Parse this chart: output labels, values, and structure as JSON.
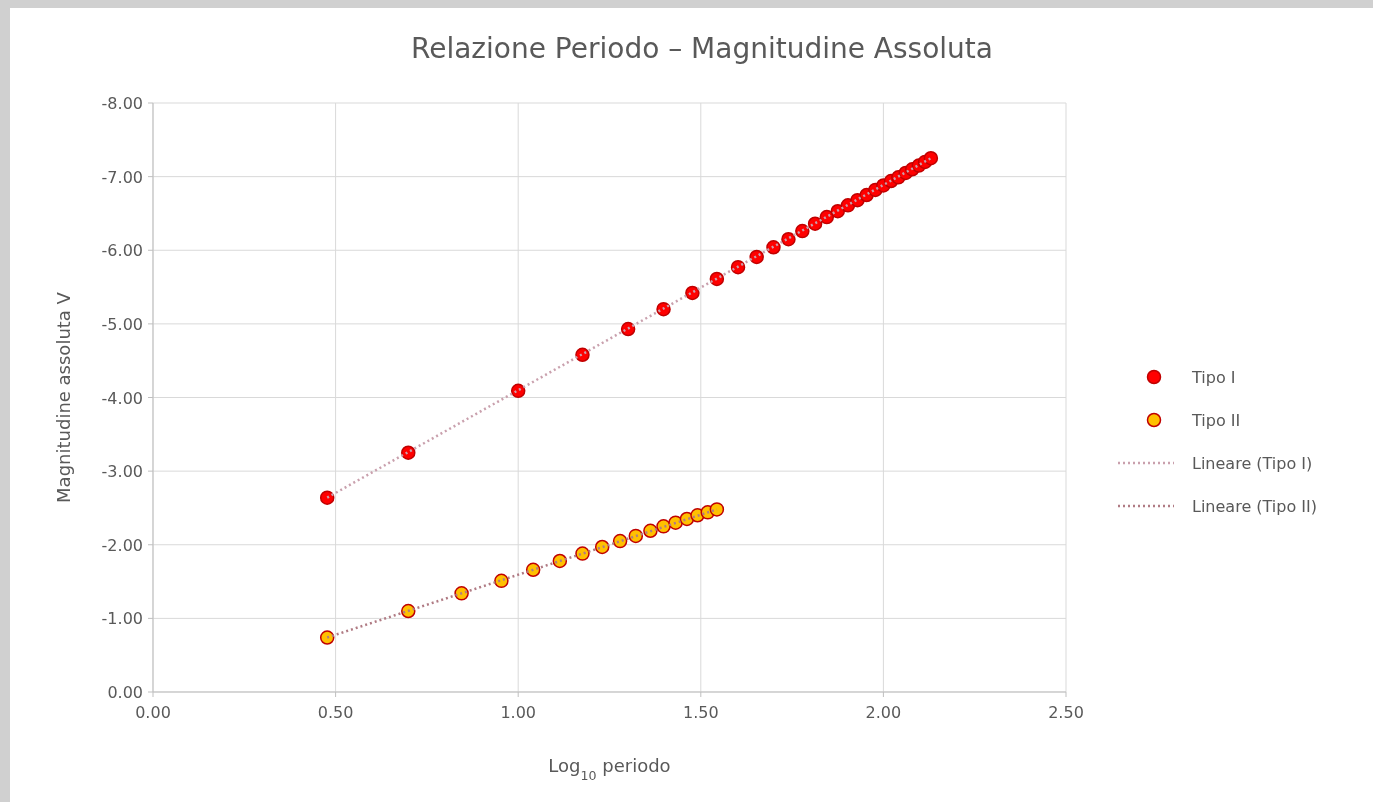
{
  "chart_data": {
    "type": "scatter",
    "title": "Relazione Periodo – Magnitudine Assoluta",
    "xlabel": "Log$_{10}$ periodo",
    "ylabel": "Magnitudine assoluta V",
    "xlim": [
      0,
      2.5
    ],
    "xticks": [
      {
        "value": 0,
        "label": "0.00"
      },
      {
        "value": 0.5,
        "label": "0.50"
      },
      {
        "value": 1,
        "label": "1.00"
      },
      {
        "value": 1.5,
        "label": "1.50"
      },
      {
        "value": 2,
        "label": "2.00"
      },
      {
        "value": 2.5,
        "label": "2.50"
      }
    ],
    "ylim": [
      0,
      -8
    ],
    "yticks": [
      {
        "value": 0,
        "label": "0.00"
      },
      {
        "value": -1,
        "label": "-1.00"
      },
      {
        "value": -2,
        "label": "-2.00"
      },
      {
        "value": -3,
        "label": "-3.00"
      },
      {
        "value": -4,
        "label": "-4.00"
      },
      {
        "value": -5,
        "label": "-5.00"
      },
      {
        "value": -6,
        "label": "-6.00"
      },
      {
        "value": -7,
        "label": "-7.00"
      },
      {
        "value": -8,
        "label": "-8.00"
      }
    ],
    "grid": true,
    "legend": "right",
    "marker": "circle",
    "series": [
      {
        "name": "Tipo I",
        "color": "#ff0000",
        "x": [
          0.477,
          0.699,
          1.0,
          1.176,
          1.301,
          1.398,
          1.477,
          1.544,
          1.602,
          1.653,
          1.699,
          1.74,
          1.778,
          1.813,
          1.845,
          1.875,
          1.903,
          1.929,
          1.954,
          1.978,
          2.0,
          2.021,
          2.041,
          2.061,
          2.079,
          2.097,
          2.114,
          2.13
        ],
        "values": [
          -2.64,
          -3.25,
          -4.09,
          -4.58,
          -4.93,
          -5.2,
          -5.42,
          -5.61,
          -5.77,
          -5.91,
          -6.04,
          -6.15,
          -6.26,
          -6.36,
          -6.45,
          -6.53,
          -6.61,
          -6.68,
          -6.75,
          -6.82,
          -6.88,
          -6.94,
          -6.99,
          -7.05,
          -7.1,
          -7.15,
          -7.2,
          -7.25
        ]
      },
      {
        "name": "Tipo II",
        "color": "#ffc000",
        "x": [
          0.477,
          0.699,
          0.845,
          0.954,
          1.041,
          1.114,
          1.176,
          1.23,
          1.279,
          1.322,
          1.362,
          1.398,
          1.431,
          1.462,
          1.491,
          1.519,
          1.544
        ],
        "values": [
          -0.74,
          -1.1,
          -1.34,
          -1.51,
          -1.66,
          -1.78,
          -1.88,
          -1.97,
          -2.05,
          -2.12,
          -2.19,
          -2.25,
          -2.3,
          -2.35,
          -2.4,
          -2.44,
          -2.48
        ]
      },
      {
        "name": "Lineare (Tipo I)",
        "type": "line",
        "line_style": "dotted",
        "marker": "none",
        "color": "#c9a0ad",
        "x": [
          0.477,
          2.13
        ],
        "values": [
          -2.64,
          -7.25
        ]
      },
      {
        "name": "Lineare (Tipo II)",
        "type": "line",
        "line_style": "dotted",
        "marker": "none",
        "color": "#b07b84",
        "x": [
          0.477,
          1.544
        ],
        "values": [
          -0.74,
          -2.48
        ]
      }
    ]
  }
}
